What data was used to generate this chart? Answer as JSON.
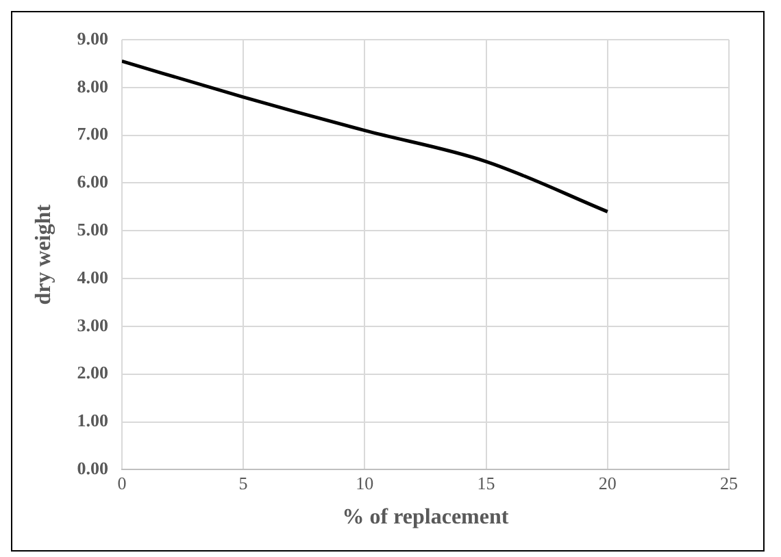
{
  "chart_data": {
    "type": "line",
    "xlabel": "% of replacement",
    "ylabel": "dry weight",
    "x": [
      0,
      5,
      10,
      15,
      20
    ],
    "series": [
      {
        "color": "#000000",
        "values": [
          8.55,
          7.8,
          7.1,
          6.45,
          5.4
        ]
      }
    ],
    "xlim": [
      0,
      25
    ],
    "xticks": [
      0,
      5,
      10,
      15,
      20,
      25
    ],
    "ylim": [
      0,
      9
    ],
    "yticks": [
      {
        "value": 0,
        "label": "0.00"
      },
      {
        "value": 1,
        "label": "1.00"
      },
      {
        "value": 2,
        "label": "2.00"
      },
      {
        "value": 3,
        "label": "3.00"
      },
      {
        "value": 4,
        "label": "4.00"
      },
      {
        "value": 5,
        "label": "5.00"
      },
      {
        "value": 6,
        "label": "6.00"
      },
      {
        "value": 7,
        "label": "7.00"
      },
      {
        "value": 8,
        "label": "8.00"
      },
      {
        "value": 9,
        "label": "9.00"
      }
    ],
    "grid": true,
    "marker": "none",
    "line_style": "solid",
    "legend": false
  }
}
